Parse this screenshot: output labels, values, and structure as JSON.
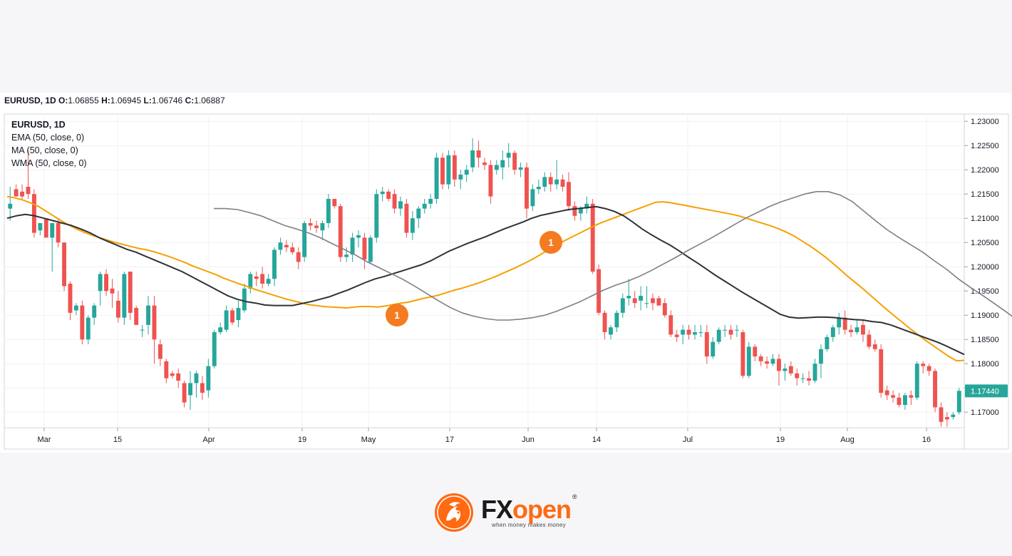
{
  "header": {
    "symbol": "EURUSD, 1D",
    "o_label": "O:",
    "o": "1.06855",
    "h_label": "H:",
    "h": "1.06945",
    "l_label": "L:",
    "l": "1.06746",
    "c_label": "C:",
    "c": "1.06887"
  },
  "legend": {
    "symbol": "EURUSD, 1D",
    "ema": "EMA (50, close, 0)",
    "ma": "MA (50, close, 0)",
    "wma": "WMA (50, close, 0)"
  },
  "logo": {
    "brand_fx": "FX",
    "brand_open": "open",
    "registered": "®",
    "tagline": "when money makes money"
  },
  "colors": {
    "up": "#26a69a",
    "down": "#ef5350",
    "ema": "#f6a000",
    "ma": "#2f3138",
    "wma": "#7f7f85",
    "badge": "#f47b20",
    "price_label": "#26a69a"
  },
  "chart_data": {
    "type": "candlestick",
    "title": "EURUSD, 1D",
    "x_tick_labels": [
      "Mar",
      "15",
      "Apr",
      "19",
      "May",
      "17",
      "Jun",
      "14",
      "Jul",
      "19",
      "Aug",
      "16"
    ],
    "y_ticks": [
      1.23,
      1.225,
      1.22,
      1.215,
      1.21,
      1.205,
      1.2,
      1.195,
      1.19,
      1.185,
      1.18,
      1.175,
      1.17
    ],
    "y_tick_labels": [
      "1.23000",
      "1.22500",
      "1.22000",
      "1.21500",
      "1.21000",
      "1.20500",
      "1.20000",
      "1.19500",
      "1.19000",
      "1.18500",
      "1.18000",
      "1.17500",
      "1.17000"
    ],
    "ylim": [
      1.1668,
      1.2315
    ],
    "last_price_label": "1.17440",
    "last_price": 1.1744,
    "candles": [
      [
        1.212,
        1.2165,
        1.213,
        1.2095
      ],
      [
        1.216,
        1.217,
        1.2145,
        1.2145
      ],
      [
        1.2155,
        1.217,
        1.2145,
        1.214
      ],
      [
        1.2165,
        1.224,
        1.215,
        1.214
      ],
      [
        1.215,
        1.216,
        1.207,
        1.206
      ],
      [
        1.2075,
        1.209,
        1.209,
        1.2065
      ],
      [
        1.21,
        1.21,
        1.206,
        1.206
      ],
      [
        1.206,
        1.209,
        1.209,
        1.199
      ],
      [
        1.209,
        1.21,
        1.205,
        1.204
      ],
      [
        1.205,
        1.205,
        1.196,
        1.195
      ],
      [
        1.1965,
        1.197,
        1.1905,
        1.189
      ],
      [
        1.191,
        1.1925,
        1.192,
        1.19
      ],
      [
        1.192,
        1.193,
        1.185,
        1.184
      ],
      [
        1.185,
        1.19,
        1.1895,
        1.184
      ],
      [
        1.1895,
        1.1925,
        1.192,
        1.188
      ],
      [
        1.195,
        1.199,
        1.1985,
        1.192
      ],
      [
        1.1985,
        1.1995,
        1.195,
        1.194
      ],
      [
        1.1955,
        1.1975,
        1.1945,
        1.1915
      ],
      [
        1.193,
        1.195,
        1.1895,
        1.1885
      ],
      [
        1.1895,
        1.199,
        1.1985,
        1.188
      ],
      [
        1.199,
        1.199,
        1.1905,
        1.189
      ],
      [
        1.1915,
        1.192,
        1.188,
        1.188
      ],
      [
        1.187,
        1.188,
        1.187,
        1.1855
      ],
      [
        1.188,
        1.194,
        1.192,
        1.186
      ],
      [
        1.192,
        1.194,
        1.185,
        1.18
      ],
      [
        1.184,
        1.185,
        1.181,
        1.1795
      ],
      [
        1.1805,
        1.181,
        1.177,
        1.176
      ],
      [
        1.178,
        1.1785,
        1.1775,
        1.177
      ],
      [
        1.178,
        1.179,
        1.1765,
        1.175
      ],
      [
        1.176,
        1.1765,
        1.172,
        1.171
      ],
      [
        1.1735,
        1.1785,
        1.176,
        1.1705
      ],
      [
        1.176,
        1.1785,
        1.178,
        1.173
      ],
      [
        1.176,
        1.1775,
        1.174,
        1.1725
      ],
      [
        1.1745,
        1.181,
        1.1795,
        1.173
      ],
      [
        1.1795,
        1.187,
        1.1865,
        1.179
      ],
      [
        1.1865,
        1.1885,
        1.1875,
        1.186
      ],
      [
        1.187,
        1.192,
        1.191,
        1.1865
      ],
      [
        1.191,
        1.1915,
        1.1885,
        1.188
      ],
      [
        1.189,
        1.193,
        1.1915,
        1.1875
      ],
      [
        1.191,
        1.1965,
        1.1955,
        1.1905
      ],
      [
        1.1955,
        1.199,
        1.1985,
        1.1945
      ],
      [
        1.198,
        1.199,
        1.1975,
        1.196
      ],
      [
        1.1985,
        1.2,
        1.1965,
        1.1955
      ],
      [
        1.1965,
        1.1985,
        1.1975,
        1.196
      ],
      [
        1.1975,
        1.204,
        1.2035,
        1.196
      ],
      [
        1.2035,
        1.206,
        1.205,
        1.2025
      ],
      [
        1.2045,
        1.2055,
        1.204,
        1.203
      ],
      [
        1.204,
        1.205,
        1.203,
        1.2025
      ],
      [
        1.203,
        1.204,
        1.201,
        1.1995
      ],
      [
        1.202,
        1.2095,
        1.209,
        1.201
      ],
      [
        1.209,
        1.21,
        1.2085,
        1.2075
      ],
      [
        1.2085,
        1.2095,
        1.208,
        1.207
      ],
      [
        1.2075,
        1.2095,
        1.209,
        1.2055
      ],
      [
        1.209,
        1.215,
        1.214,
        1.208
      ],
      [
        1.214,
        1.214,
        1.2125,
        1.212
      ],
      [
        1.2125,
        1.213,
        1.202,
        1.201
      ],
      [
        1.202,
        1.204,
        1.2025,
        1.201
      ],
      [
        1.2025,
        1.207,
        1.206,
        1.201
      ],
      [
        1.206,
        1.2075,
        1.2065,
        1.204
      ],
      [
        1.206,
        1.207,
        1.2015,
        1.1995
      ],
      [
        1.201,
        1.2065,
        1.206,
        1.2005
      ],
      [
        1.206,
        1.216,
        1.215,
        1.205
      ],
      [
        1.215,
        1.2165,
        1.2155,
        1.2135
      ],
      [
        1.2155,
        1.216,
        1.214,
        1.2135
      ],
      [
        1.215,
        1.216,
        1.212,
        1.211
      ],
      [
        1.212,
        1.2145,
        1.2135,
        1.2105
      ],
      [
        1.213,
        1.214,
        1.207,
        1.206
      ],
      [
        1.207,
        1.2115,
        1.21,
        1.2055
      ],
      [
        1.21,
        1.2125,
        1.212,
        1.208
      ],
      [
        1.212,
        1.214,
        1.213,
        1.211
      ],
      [
        1.213,
        1.215,
        1.214,
        1.212
      ],
      [
        1.214,
        1.2235,
        1.2225,
        1.213
      ],
      [
        1.2225,
        1.2235,
        1.217,
        1.216
      ],
      [
        1.217,
        1.224,
        1.223,
        1.216
      ],
      [
        1.223,
        1.224,
        1.218,
        1.2165
      ],
      [
        1.218,
        1.22,
        1.219,
        1.216
      ],
      [
        1.219,
        1.221,
        1.22,
        1.2175
      ],
      [
        1.2205,
        1.2265,
        1.224,
        1.2195
      ],
      [
        1.224,
        1.226,
        1.2225,
        1.2205
      ],
      [
        1.2215,
        1.2225,
        1.221,
        1.22
      ],
      [
        1.221,
        1.222,
        1.2145,
        1.213
      ],
      [
        1.22,
        1.222,
        1.221,
        1.219
      ],
      [
        1.2205,
        1.224,
        1.222,
        1.218
      ],
      [
        1.2225,
        1.2255,
        1.2235,
        1.2205
      ],
      [
        1.2235,
        1.224,
        1.22,
        1.219
      ],
      [
        1.22,
        1.2215,
        1.2205,
        1.2185
      ],
      [
        1.2205,
        1.2215,
        1.212,
        1.21
      ],
      [
        1.2125,
        1.217,
        1.216,
        1.2115
      ],
      [
        1.216,
        1.218,
        1.2165,
        1.215
      ],
      [
        1.2165,
        1.2195,
        1.2185,
        1.2155
      ],
      [
        1.2185,
        1.2195,
        1.217,
        1.2155
      ],
      [
        1.217,
        1.222,
        1.218,
        1.216
      ],
      [
        1.218,
        1.219,
        1.2165,
        1.2155
      ],
      [
        1.2175,
        1.2195,
        1.2125,
        1.2115
      ],
      [
        1.2125,
        1.2135,
        1.2105,
        1.2095
      ],
      [
        1.211,
        1.2125,
        1.212,
        1.2095
      ],
      [
        1.212,
        1.2145,
        1.213,
        1.211
      ],
      [
        1.213,
        1.214,
        1.199,
        1.1985
      ],
      [
        1.1995,
        1.2005,
        1.1905,
        1.19
      ],
      [
        1.1905,
        1.191,
        1.1865,
        1.185
      ],
      [
        1.186,
        1.188,
        1.1875,
        1.185
      ],
      [
        1.1875,
        1.191,
        1.1905,
        1.1865
      ],
      [
        1.1905,
        1.1945,
        1.1935,
        1.1895
      ],
      [
        1.1935,
        1.1975,
        1.194,
        1.192
      ],
      [
        1.1935,
        1.195,
        1.1925,
        1.1915
      ],
      [
        1.193,
        1.196,
        1.194,
        1.191
      ],
      [
        1.1925,
        1.196,
        1.1925,
        1.1915
      ],
      [
        1.1935,
        1.1945,
        1.1925,
        1.191
      ],
      [
        1.1935,
        1.194,
        1.192,
        1.192
      ],
      [
        1.1925,
        1.1935,
        1.19,
        1.1895
      ],
      [
        1.19,
        1.191,
        1.186,
        1.1855
      ],
      [
        1.186,
        1.187,
        1.1855,
        1.1845
      ],
      [
        1.186,
        1.188,
        1.187,
        1.184
      ],
      [
        1.187,
        1.188,
        1.186,
        1.185
      ],
      [
        1.186,
        1.188,
        1.1865,
        1.185
      ],
      [
        1.1865,
        1.188,
        1.1865,
        1.1855
      ],
      [
        1.1865,
        1.188,
        1.1815,
        1.18
      ],
      [
        1.1815,
        1.1855,
        1.1845,
        1.181
      ],
      [
        1.1845,
        1.1875,
        1.187,
        1.184
      ],
      [
        1.187,
        1.188,
        1.187,
        1.1855
      ],
      [
        1.187,
        1.188,
        1.186,
        1.185
      ],
      [
        1.187,
        1.188,
        1.187,
        1.1855
      ],
      [
        1.1865,
        1.187,
        1.1775,
        1.177
      ],
      [
        1.1775,
        1.1845,
        1.1835,
        1.177
      ],
      [
        1.1835,
        1.184,
        1.1815,
        1.1805
      ],
      [
        1.1815,
        1.182,
        1.1805,
        1.1795
      ],
      [
        1.1805,
        1.1815,
        1.18,
        1.179
      ],
      [
        1.18,
        1.182,
        1.181,
        1.1795
      ],
      [
        1.181,
        1.182,
        1.1785,
        1.1755
      ],
      [
        1.1785,
        1.18,
        1.179,
        1.1765
      ],
      [
        1.1795,
        1.1805,
        1.178,
        1.1775
      ],
      [
        1.178,
        1.179,
        1.177,
        1.1755
      ],
      [
        1.177,
        1.178,
        1.177,
        1.176
      ],
      [
        1.177,
        1.1785,
        1.1765,
        1.1755
      ],
      [
        1.1765,
        1.181,
        1.18,
        1.176
      ],
      [
        1.18,
        1.184,
        1.183,
        1.177
      ],
      [
        1.183,
        1.186,
        1.1855,
        1.1825
      ],
      [
        1.1855,
        1.188,
        1.1875,
        1.1845
      ],
      [
        1.1875,
        1.1905,
        1.1895,
        1.186
      ],
      [
        1.1895,
        1.191,
        1.187,
        1.186
      ],
      [
        1.187,
        1.188,
        1.1865,
        1.1855
      ],
      [
        1.1865,
        1.189,
        1.1875,
        1.186
      ],
      [
        1.188,
        1.189,
        1.186,
        1.1845
      ],
      [
        1.186,
        1.187,
        1.1835,
        1.183
      ],
      [
        1.184,
        1.185,
        1.183,
        1.1825
      ],
      [
        1.183,
        1.184,
        1.174,
        1.173
      ],
      [
        1.1745,
        1.1755,
        1.1735,
        1.1725
      ],
      [
        1.1735,
        1.1745,
        1.173,
        1.172
      ],
      [
        1.173,
        1.174,
        1.1715,
        1.171
      ],
      [
        1.1715,
        1.174,
        1.1735,
        1.1705
      ],
      [
        1.1735,
        1.1745,
        1.173,
        1.1715
      ],
      [
        1.173,
        1.1805,
        1.18,
        1.1725
      ],
      [
        1.18,
        1.1805,
        1.1795,
        1.178
      ],
      [
        1.1795,
        1.18,
        1.1785,
        1.1775
      ],
      [
        1.1785,
        1.179,
        1.171,
        1.17
      ],
      [
        1.171,
        1.172,
        1.168,
        1.167
      ],
      [
        1.169,
        1.17,
        1.1685,
        1.167
      ],
      [
        1.169,
        1.17,
        1.1695,
        1.1685
      ],
      [
        1.17,
        1.175,
        1.1744,
        1.1695
      ]
    ],
    "indicators": [
      {
        "name": "EMA (50, close, 0)",
        "values": [
          1.2145,
          1.2142,
          1.2138,
          1.2132,
          1.2125,
          1.2115,
          1.2105,
          1.2095,
          1.2086,
          1.2078,
          1.2071,
          1.2065,
          1.206,
          1.2055,
          1.205,
          1.2046,
          1.2042,
          1.2038,
          1.2035,
          1.2031,
          1.2026,
          1.2021,
          1.2015,
          1.2009,
          1.2002,
          1.1996,
          1.199,
          1.1984,
          1.1977,
          1.1971,
          1.1965,
          1.196,
          1.1954,
          1.1949,
          1.1944,
          1.1939,
          1.1934,
          1.193,
          1.1926,
          1.1922,
          1.192,
          1.1918,
          1.1917,
          1.1916,
          1.1915,
          1.1917,
          1.1918,
          1.1918,
          1.1917,
          1.1919,
          1.1922,
          1.1925,
          1.1927,
          1.1931,
          1.1935,
          1.1938,
          1.1942,
          1.1947,
          1.1952,
          1.1956,
          1.1961,
          1.1966,
          1.1972,
          1.1978,
          1.1985,
          1.1992,
          1.1999,
          1.2007,
          1.2015,
          1.2024,
          1.2034,
          1.2043,
          1.2052,
          1.206,
          1.2068,
          1.2076,
          1.2084,
          1.2091,
          1.2097,
          1.2103,
          1.2109,
          1.2115,
          1.2121,
          1.2127,
          1.2133,
          1.2134,
          1.2132,
          1.2129,
          1.2126,
          1.2123,
          1.212,
          1.2117,
          1.2114,
          1.2111,
          1.2108,
          1.2104,
          1.2099,
          1.2094,
          1.2089,
          1.2084,
          1.2078,
          1.2071,
          1.2063,
          1.2053,
          1.2043,
          1.2032,
          1.202,
          1.2007,
          1.1993,
          1.1979,
          1.1966,
          1.1953,
          1.1939,
          1.1925,
          1.1911,
          1.1898,
          1.1885,
          1.1872,
          1.186,
          1.1848,
          1.1837,
          1.1826,
          1.1815,
          1.1806,
          1.1807
        ]
      },
      {
        "name": "MA (50, close, 0)",
        "values": [
          1.21,
          1.2105,
          1.2108,
          1.2105,
          1.21,
          1.2095,
          1.209,
          1.2085,
          1.2078,
          1.207,
          1.206,
          1.2052,
          1.2044,
          1.2036,
          1.203,
          1.2022,
          1.2014,
          1.2006,
          1.1998,
          1.199,
          1.198,
          1.197,
          1.196,
          1.195,
          1.194,
          1.1933,
          1.1928,
          1.1925,
          1.1921,
          1.192,
          1.192,
          1.192,
          1.1924,
          1.1928,
          1.1933,
          1.1938,
          1.1945,
          1.1952,
          1.196,
          1.1968,
          1.1975,
          1.198,
          1.1986,
          1.1992,
          1.1998,
          1.2004,
          1.2012,
          1.2022,
          1.2032,
          1.204,
          1.2048,
          1.2055,
          1.2062,
          1.207,
          1.2078,
          1.2085,
          1.2092,
          1.21,
          1.2106,
          1.211,
          1.2114,
          1.2118,
          1.212,
          1.2122,
          1.2124,
          1.212,
          1.2114,
          1.2105,
          1.2092,
          1.2078,
          1.2066,
          1.2055,
          1.2045,
          1.2033,
          1.202,
          1.2008,
          1.1995,
          1.1982,
          1.197,
          1.1958,
          1.1946,
          1.1935,
          1.1924,
          1.1913,
          1.1902,
          1.1896,
          1.1894,
          1.1895,
          1.1896,
          1.1896,
          1.1895,
          1.1893,
          1.1891,
          1.189,
          1.1887,
          1.1885,
          1.188,
          1.1873,
          1.1866,
          1.1859,
          1.1852,
          1.1845,
          1.1837,
          1.1828,
          1.1819
        ]
      },
      {
        "name": "WMA (50, close, 0)",
        "values": [
          1.212,
          1.212,
          1.2118,
          1.2112,
          1.2105,
          1.2095,
          1.2085,
          1.2078,
          1.207,
          1.206,
          1.2048,
          1.2036,
          1.2024,
          1.201,
          1.1998,
          1.1986,
          1.1974,
          1.196,
          1.1945,
          1.193,
          1.1916,
          1.1905,
          1.1898,
          1.1893,
          1.189,
          1.189,
          1.1892,
          1.1895,
          1.19,
          1.1908,
          1.1918,
          1.1928,
          1.194,
          1.1952,
          1.1962,
          1.197,
          1.198,
          1.1992,
          1.2005,
          1.2018,
          1.2032,
          1.2045,
          1.2058,
          1.2072,
          1.2086,
          1.21,
          1.2112,
          1.2124,
          1.2134,
          1.2142,
          1.215,
          1.2155,
          1.2155,
          1.2148,
          1.2135,
          1.2115,
          1.2095,
          1.2076,
          1.206,
          1.2045,
          1.203,
          1.2012,
          1.1995,
          1.1975,
          1.1958,
          1.1942,
          1.1925,
          1.1908,
          1.189,
          1.1874,
          1.186,
          1.1852,
          1.185,
          1.1848,
          1.1842,
          1.1838,
          1.183,
          1.182,
          1.181,
          1.18,
          1.179,
          1.1782
        ]
      }
    ],
    "annotations": [
      {
        "label": "1",
        "text": "1"
      },
      {
        "label": "1",
        "text": "1"
      }
    ]
  }
}
